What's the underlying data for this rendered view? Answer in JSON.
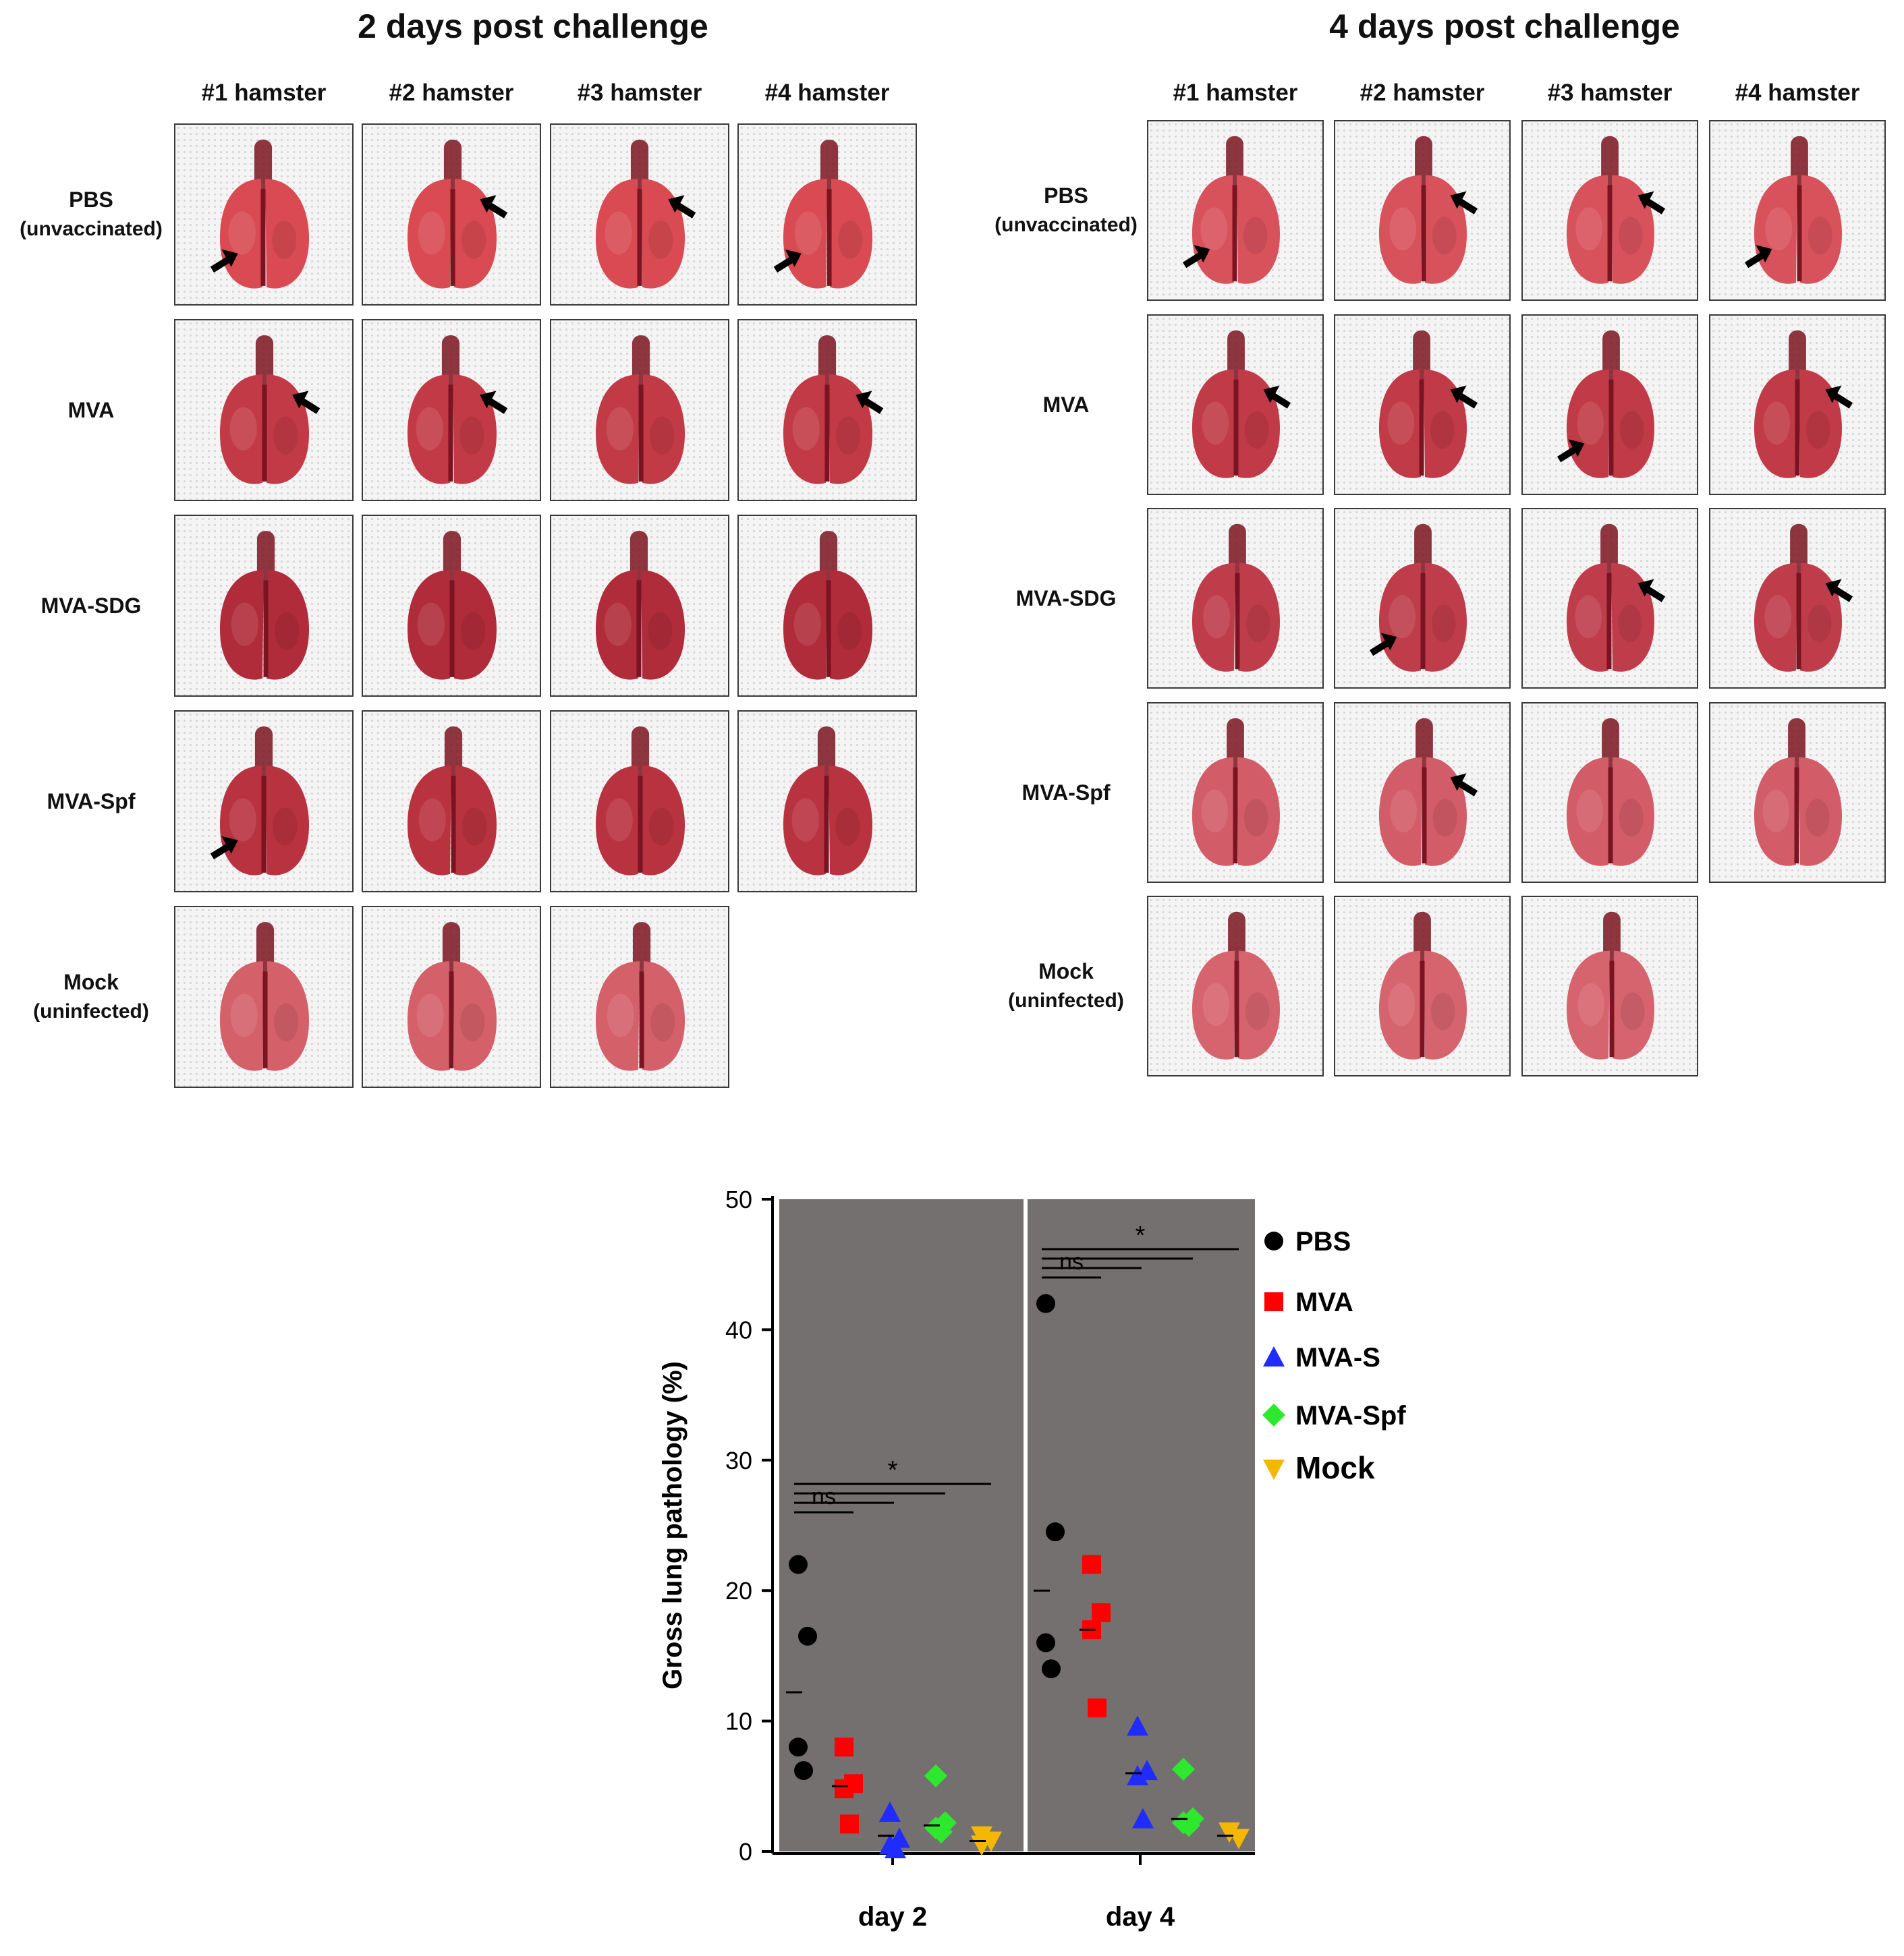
{
  "figure": {
    "panels": [
      {
        "title": "2 days post challenge",
        "columns": [
          "#1 hamster",
          "#2 hamster",
          "#3 hamster",
          "#4 hamster"
        ],
        "rows": [
          {
            "label": "PBS",
            "sublabel": "(unvaccinated)",
            "lungs": 4,
            "arrows": [
              1,
              2,
              3,
              4
            ],
            "tint": "#d94a52"
          },
          {
            "label": "MVA",
            "sublabel": "",
            "lungs": 4,
            "arrows": [
              1,
              2,
              4
            ],
            "tint": "#c23a46"
          },
          {
            "label": "MVA-SDG",
            "sublabel": "",
            "lungs": 4,
            "arrows": [],
            "tint": "#b02c3a"
          },
          {
            "label": "MVA-Spf",
            "sublabel": "",
            "lungs": 4,
            "arrows": [
              1
            ],
            "tint": "#b8323f"
          },
          {
            "label": "Mock",
            "sublabel": "(uninfected)",
            "lungs": 3,
            "arrows": [],
            "tint": "#d4606a"
          }
        ]
      },
      {
        "title": "4 days post challenge",
        "columns": [
          "#1 hamster",
          "#2 hamster",
          "#3 hamster",
          "#4 hamster"
        ],
        "rows": [
          {
            "label": "PBS",
            "sublabel": "(unvaccinated)",
            "lungs": 4,
            "arrows": [
              1,
              2,
              3,
              4
            ],
            "tint": "#d8525c"
          },
          {
            "label": "MVA",
            "sublabel": "",
            "lungs": 4,
            "arrows": [
              1,
              2,
              3,
              4
            ],
            "tint": "#c03a47"
          },
          {
            "label": "MVA-SDG",
            "sublabel": "",
            "lungs": 4,
            "arrows": [
              2,
              3,
              4
            ],
            "tint": "#bf3d4b"
          },
          {
            "label": "MVA-Spf",
            "sublabel": "",
            "lungs": 4,
            "arrows": [
              2
            ],
            "tint": "#d25c67"
          },
          {
            "label": "Mock",
            "sublabel": "(uninfected)",
            "lungs": 3,
            "arrows": [],
            "tint": "#d6646e"
          }
        ]
      }
    ]
  },
  "chart_data": {
    "type": "scatter",
    "ylabel": "Gross lung pathology (%)",
    "ylim": [
      0,
      50
    ],
    "yticks": [
      0,
      10,
      20,
      30,
      40,
      50
    ],
    "categories": [
      "day 2",
      "day 4"
    ],
    "background": "#747070",
    "series": [
      {
        "name": "PBS",
        "marker": "circle",
        "color": "#000000",
        "day2": [
          22,
          16.5,
          8,
          6.2
        ],
        "day2_mean": 12.2,
        "day4": [
          42,
          24.5,
          16,
          14
        ],
        "day4_mean": 20
      },
      {
        "name": "MVA",
        "marker": "square",
        "color": "#ff0000",
        "day2": [
          8,
          5.2,
          4.8,
          2.1
        ],
        "day2_mean": 5,
        "day4": [
          22,
          18.3,
          17,
          11
        ],
        "day4_mean": 17
      },
      {
        "name": "MVA-S",
        "marker": "triangle-up",
        "color": "#1f2bff",
        "day2": [
          3,
          1,
          0.5,
          0.2
        ],
        "day2_mean": 1.2,
        "day4": [
          9.6,
          6.2,
          5.8,
          2.5
        ],
        "day4_mean": 6
      },
      {
        "name": "MVA-Spf",
        "marker": "diamond",
        "color": "#2ee82e",
        "day2": [
          5.8,
          2.2,
          1.8,
          1.5
        ],
        "day2_mean": 2,
        "day4": [
          6.3,
          2.5,
          2.2,
          2
        ],
        "day4_mean": 2.5
      },
      {
        "name": "Mock",
        "marker": "triangle-down",
        "color": "#f5b800",
        "day2": [
          1.2,
          0.8,
          0.5
        ],
        "day2_mean": 0.8,
        "day4": [
          1.5,
          1
        ],
        "day4_mean": 1.2
      }
    ],
    "annotations": [
      {
        "day": "day 2",
        "ns_label": "ns",
        "star_label": "*"
      },
      {
        "day": "day 4",
        "ns_label": "ns",
        "star_label": "*"
      }
    ]
  }
}
